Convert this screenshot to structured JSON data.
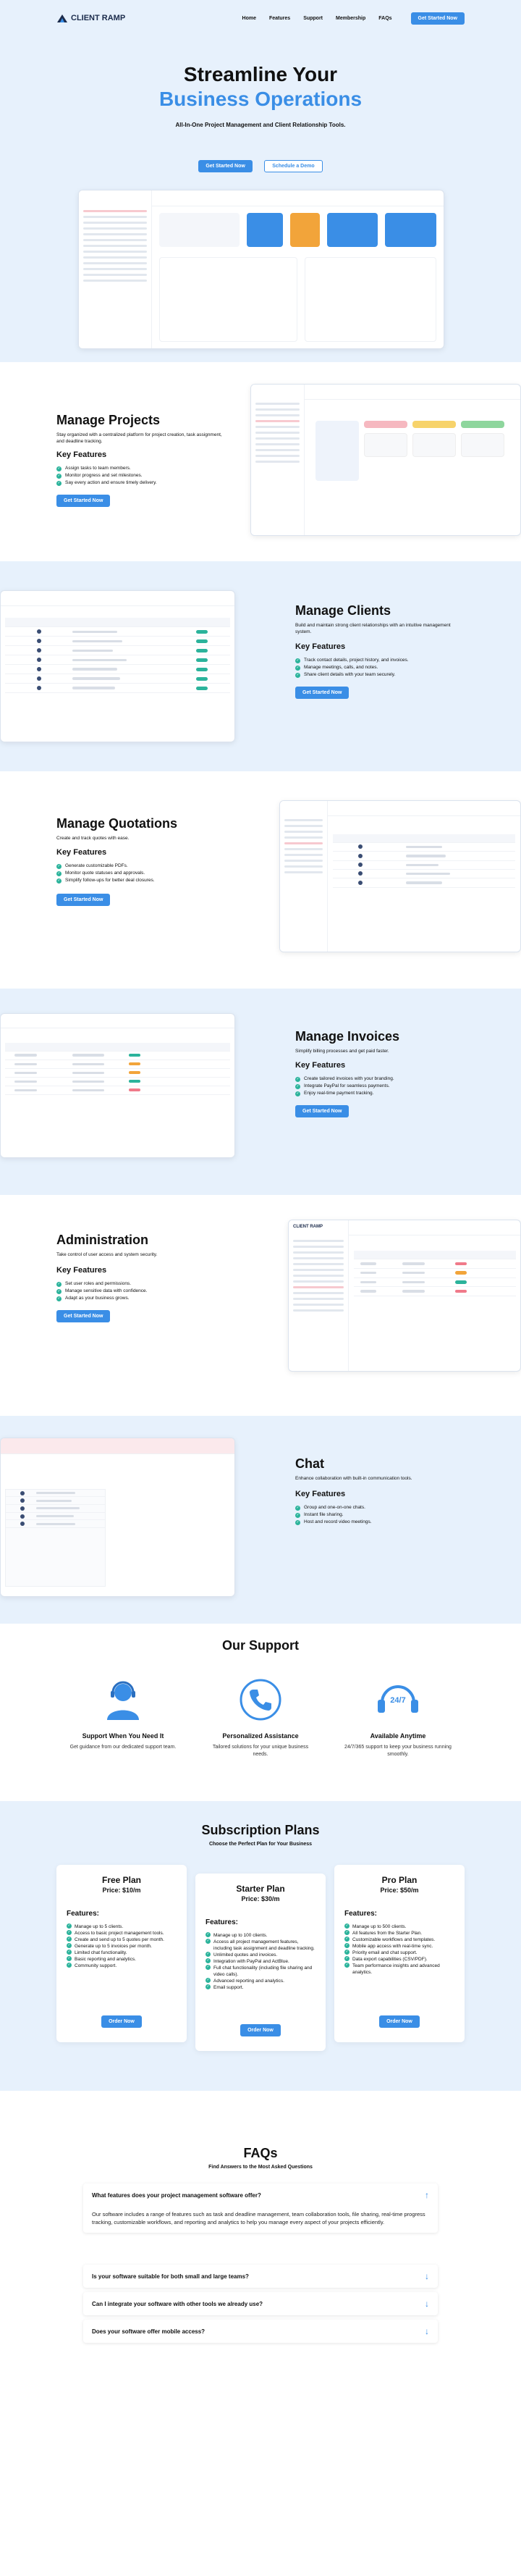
{
  "brand": {
    "name": "CLIENT RAMP",
    "accent": "#3a8ee6",
    "band": "#e7f1fc",
    "check": "#2bb39b"
  },
  "nav": {
    "links": [
      "Home",
      "Features",
      "Support",
      "Membership",
      "FAQs"
    ],
    "cta": "Get Started Now"
  },
  "hero": {
    "title_line1": "Streamline Your",
    "title_line2": "Business Operations",
    "subtitle": "All-In-One Project Management and Client Relationship Tools.",
    "primary_cta": "Get Started Now",
    "secondary_cta": "Schedule a Demo"
  },
  "features": [
    {
      "title": "Manage Projects",
      "description": "Stay organized with a centralized platform for project creation, task assignment, and deadline tracking.",
      "key_label": "Key Features",
      "items": [
        "Assign tasks to team members.",
        "Monitor progress and set milestones.",
        "Say every action and ensure timely delivery."
      ],
      "cta": "Get Started Now"
    },
    {
      "title": "Manage Clients",
      "description": "Build and maintain strong client relationships with an intuitive management system.",
      "key_label": "Key Features",
      "items": [
        "Track contact details, project history, and invoices.",
        "Manage meetings, calls, and notes.",
        "Share client details with your team securely."
      ],
      "cta": "Get Started Now"
    },
    {
      "title": "Manage Quotations",
      "description": "Create and track quotes with ease.",
      "key_label": "Key Features",
      "items": [
        "Generate customizable PDFs.",
        "Monitor quote statuses and approvals.",
        "Simplify follow-ups for better deal closures."
      ],
      "cta": "Get Started Now"
    },
    {
      "title": "Manage Invoices",
      "description": "Simplify billing processes and get paid faster.",
      "key_label": "Key Features",
      "items": [
        "Create tailored invoices with your branding.",
        "Integrate PayPal for seamless payments.",
        "Enjoy real-time payment tracking."
      ],
      "cta": "Get Started Now"
    },
    {
      "title": "Administration",
      "description": "Take control of user access and system security.",
      "key_label": "Key Features",
      "items": [
        "Set user roles and permissions.",
        "Manage sensitive data with confidence.",
        "Adapt as your business grows."
      ],
      "cta": "Get Started Now"
    },
    {
      "title": "Chat",
      "description": "Enhance collaboration with built-in communication tools.",
      "key_label": "Key Features",
      "items": [
        "Group and one-on-one chats.",
        "Instant file sharing.",
        "Host and record video meetings."
      ],
      "cta": "Get Started Now"
    }
  ],
  "support": {
    "title": "Our Support",
    "items": [
      {
        "icon": "person-headset-icon",
        "title": "Support When You Need It",
        "text": "Get guidance from our dedicated support team."
      },
      {
        "icon": "phone-call-icon",
        "title": "Personalized Assistance",
        "text": "Tailored solutions for your unique business needs."
      },
      {
        "icon": "24-7-support-icon",
        "title": "Available Anytime",
        "text": "24/7/365 support to keep your business running smoothly.",
        "badge": "24/7"
      }
    ]
  },
  "plans": {
    "title": "Subscription Plans",
    "subtitle": "Choose the Perfect Plan for Your Business",
    "features_label": "Features:",
    "order_label": "Order Now",
    "items": [
      {
        "name": "Free Plan",
        "price": "Price: $10/m",
        "features": [
          "Manage up to 5 clients.",
          "Access to basic project management tools.",
          "Create and send up to 5 quotes per month.",
          "Generate up to 5 invoices per month.",
          "Limited chat functionality.",
          "Basic reporting and analytics.",
          "Community support."
        ]
      },
      {
        "name": "Starter Plan",
        "price": "Price: $30/m",
        "features": [
          "Manage up to 100 clients.",
          "Access all project management features, including task assignment and deadline tracking.",
          "Unlimited quotes and invoices.",
          "Integration with PayPal and ActBlue.",
          "Full chat functionality (including file sharing and video calls).",
          "Advanced reporting and analytics.",
          "Email support."
        ]
      },
      {
        "name": "Pro Plan",
        "price": "Price: $50/m",
        "features": [
          "Manage up to 500 clients.",
          "All features from the Starter Plan.",
          "Customizable workflows and templates.",
          "Mobile app access with real-time sync.",
          "Priority email and chat support.",
          "Data export capabilities (CSV/PDF).",
          "Team performance insights and advanced analytics."
        ]
      }
    ]
  },
  "faq": {
    "title": "FAQs",
    "subtitle": "Find Answers to the Most Asked Questions",
    "items": [
      {
        "q": "What features does your project management software offer?",
        "a": "Our software includes a range of features such as task and deadline management, team collaboration tools, file sharing, real-time progress tracking, customizable workflows, and reporting and analytics to help you manage every aspect of your projects efficiently.",
        "open": true
      },
      {
        "q": "Is your software suitable for both small and large teams?",
        "open": false
      },
      {
        "q": "Can I integrate your software with other tools we already use?",
        "open": false
      },
      {
        "q": "Does your software offer mobile access?",
        "open": false
      }
    ]
  }
}
